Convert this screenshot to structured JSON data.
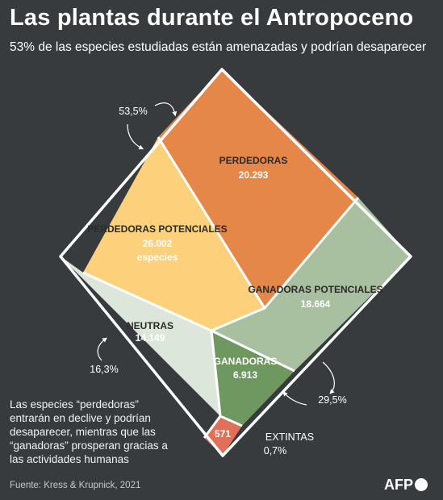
{
  "header": {
    "title": "Las plantas durante el Antropoceno",
    "subtitle": "53% de las especies estudiadas están amenazadas y podrían desaparecer"
  },
  "segments": {
    "perdedoras": {
      "label": "PERDEDORAS",
      "value": "20.293",
      "color": "#e6874a"
    },
    "perdedoras_potenciales": {
      "label": "PERDEDORAS POTENCIALES",
      "value": "26.002",
      "unit": "especies",
      "color": "#fdd17c"
    },
    "ganadoras_potenciales": {
      "label": "GANADORAS POTENCIALES",
      "value": "18.664",
      "color": "#a8c09f"
    },
    "neutras": {
      "label": "NEUTRAS",
      "value": "14.149",
      "color": "#dde6db"
    },
    "ganadoras": {
      "label": "GANADORAS",
      "value": "6.913",
      "color": "#6f9861"
    },
    "extintas": {
      "label": "EXTINTAS",
      "value": "571",
      "color": "#e0705a"
    }
  },
  "percentages": {
    "threatened": "53,5%",
    "neutral": "16,3%",
    "winners": "29,5%",
    "extinct": "0,7%"
  },
  "note": "Las especies “perdedoras” entrarán en declive y podrían desaparecer, mientras que las “ganadoras” prosperan gracias a las actividades humanas",
  "source": "Fuente: Kress & Krupnick, 2021",
  "logo": "AFP"
}
